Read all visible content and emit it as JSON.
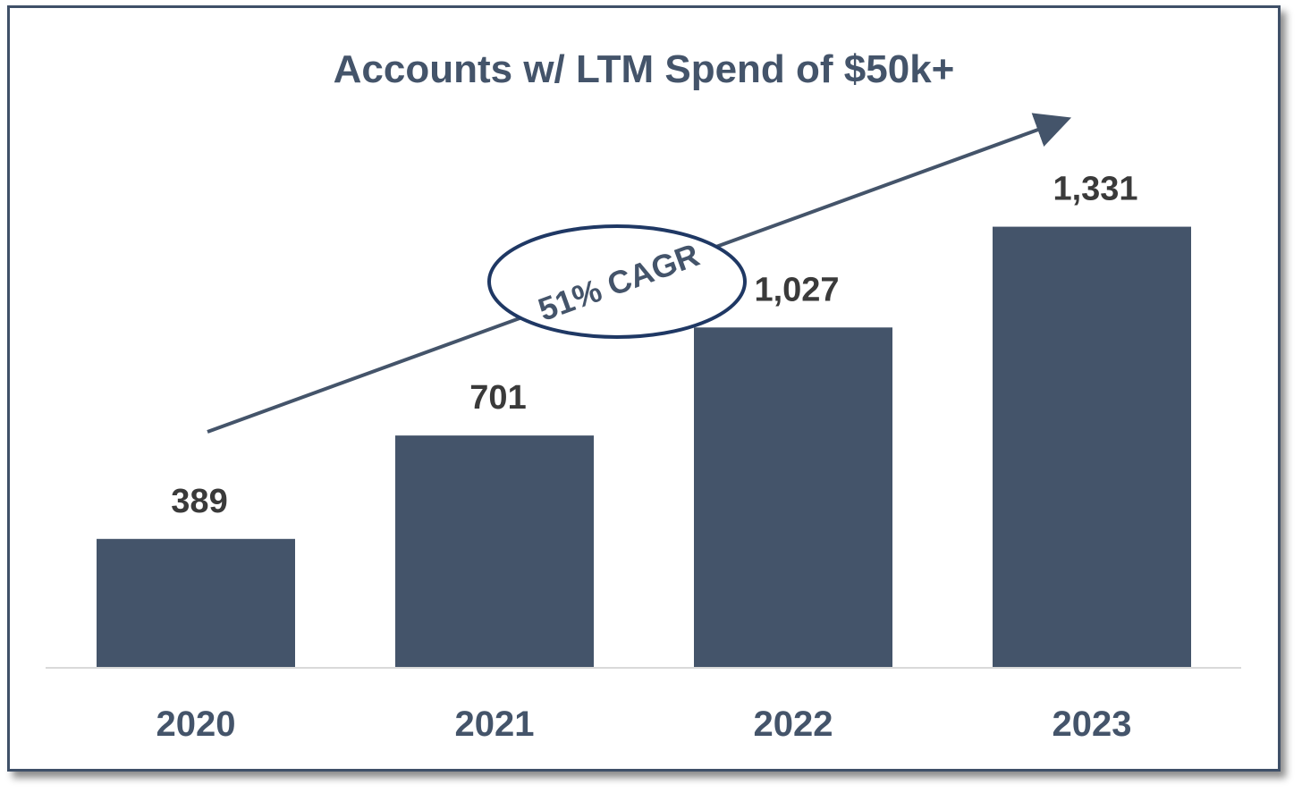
{
  "chart_data": {
    "type": "bar",
    "title": "Accounts w/ LTM Spend of $50k+",
    "categories": [
      "2020",
      "2021",
      "2022",
      "2023"
    ],
    "values": [
      389,
      701,
      1027,
      1331
    ],
    "value_labels": [
      "389",
      "701",
      "1,027",
      "1,331"
    ],
    "ylim": [
      0,
      1400
    ],
    "grid": false,
    "annotation": "51% CAGR",
    "colors": {
      "bar": "#44546a",
      "title": "#44546a",
      "value_label": "#3a3a3a",
      "axis": "#d9d9d9",
      "arrow": "#44546a"
    }
  }
}
